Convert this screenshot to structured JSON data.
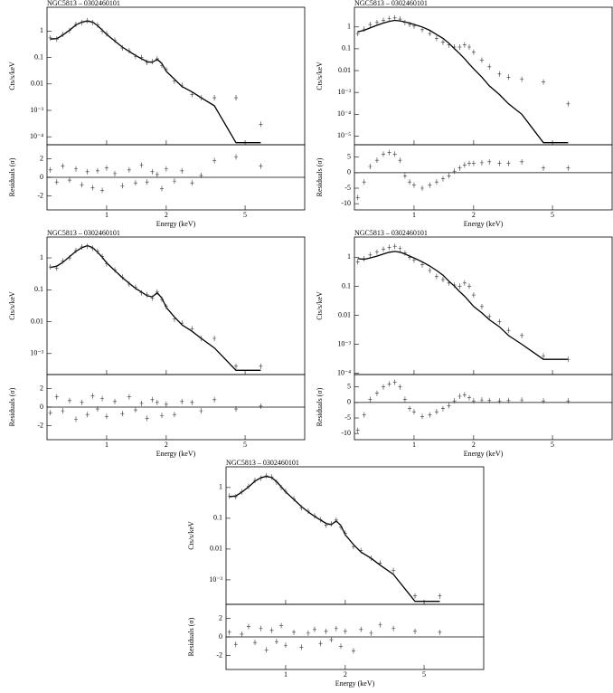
{
  "chart_data": [
    {
      "type": "spectrum",
      "title": "NGC5813 – 0302460101",
      "xlabel": "Energy (keV)",
      "ylabel": "Cts/s/keV",
      "residual_ylabel": "Residuals (σ)",
      "log_x": true,
      "log_y": true,
      "xlim": [
        0.5,
        10
      ],
      "xticks": [
        1,
        2,
        5
      ],
      "ylim": [
        5e-05,
        8
      ],
      "yticks": [
        1,
        0.1,
        0.01,
        {
          "value": 0.001,
          "label": "10⁻³"
        },
        {
          "value": 0.0001,
          "label": "10⁻⁴"
        }
      ],
      "residual_ylim": [
        -3.5,
        3.5
      ],
      "residual_yticks": [
        -2,
        0,
        2
      ],
      "x": [
        0.52,
        0.56,
        0.6,
        0.65,
        0.7,
        0.75,
        0.8,
        0.85,
        0.9,
        0.95,
        1.0,
        1.1,
        1.2,
        1.3,
        1.4,
        1.5,
        1.6,
        1.7,
        1.8,
        1.9,
        2.0,
        2.2,
        2.4,
        2.7,
        3.0,
        3.5,
        4.5,
        6.0
      ],
      "model": [
        0.5,
        0.52,
        0.7,
        1.1,
        1.7,
        2.2,
        2.4,
        2.2,
        1.6,
        1.1,
        0.75,
        0.42,
        0.25,
        0.17,
        0.12,
        0.09,
        0.07,
        0.065,
        0.085,
        0.06,
        0.03,
        0.015,
        0.008,
        0.005,
        0.003,
        0.0015,
        6e-05,
        6e-05
      ],
      "data": [
        0.55,
        0.5,
        0.75,
        1.05,
        1.8,
        2.1,
        2.5,
        2.1,
        1.7,
        1.0,
        0.8,
        0.45,
        0.23,
        0.18,
        0.11,
        0.1,
        0.065,
        0.07,
        0.09,
        0.05,
        0.035,
        0.013,
        0.009,
        0.004,
        0.003,
        0.003,
        0.003,
        0.0003
      ],
      "residuals": [
        0.8,
        -0.5,
        1.2,
        -0.3,
        0.9,
        -0.8,
        0.6,
        -1.1,
        0.7,
        -1.4,
        1.0,
        0.4,
        -0.9,
        0.8,
        -0.6,
        1.3,
        -0.5,
        0.6,
        0.3,
        -1.2,
        0.9,
        -0.4,
        0.7,
        -0.6,
        0.2,
        1.8,
        2.2,
        1.2
      ]
    },
    {
      "type": "spectrum",
      "title": "NGC5813 – 0302460101",
      "xlabel": "Energy (keV)",
      "ylabel": "Cts/s/keV",
      "residual_ylabel": "Residuals (σ)",
      "log_x": true,
      "log_y": true,
      "xlim": [
        0.5,
        10
      ],
      "xticks": [
        1,
        2,
        5
      ],
      "ylim": [
        4e-06,
        8
      ],
      "yticks": [
        1,
        0.1,
        0.01,
        {
          "value": 0.001,
          "label": "10⁻³"
        },
        {
          "value": 0.0001,
          "label": "10⁻⁴"
        },
        {
          "value": 1e-05,
          "label": "10⁻⁵"
        }
      ],
      "residual_ylim": [
        -12,
        9
      ],
      "residual_yticks": [
        -10,
        -5,
        0,
        5
      ],
      "x": [
        0.52,
        0.56,
        0.6,
        0.65,
        0.7,
        0.75,
        0.8,
        0.85,
        0.9,
        0.95,
        1.0,
        1.1,
        1.2,
        1.3,
        1.4,
        1.5,
        1.6,
        1.7,
        1.8,
        1.9,
        2.0,
        2.2,
        2.4,
        2.7,
        3.0,
        3.5,
        4.5,
        6.0
      ],
      "model": [
        0.6,
        0.7,
        0.9,
        1.2,
        1.5,
        1.8,
        2.0,
        1.9,
        1.7,
        1.5,
        1.3,
        1.0,
        0.7,
        0.45,
        0.3,
        0.18,
        0.1,
        0.06,
        0.035,
        0.02,
        0.012,
        0.005,
        0.002,
        0.0008,
        0.0003,
        0.0001,
        5e-06,
        5e-06
      ],
      "data": [
        0.5,
        0.8,
        1.3,
        1.6,
        2.0,
        2.4,
        2.6,
        2.3,
        1.6,
        1.3,
        1.1,
        0.75,
        0.5,
        0.3,
        0.2,
        0.15,
        0.12,
        0.12,
        0.15,
        0.12,
        0.07,
        0.03,
        0.015,
        0.007,
        0.005,
        0.004,
        0.003,
        0.0003
      ],
      "residuals": [
        -8,
        -3,
        2,
        4,
        6,
        6.5,
        6,
        4,
        -1,
        -3,
        -4,
        -5,
        -4,
        -3,
        -2,
        -1,
        0.5,
        1.5,
        2.5,
        3,
        3,
        3.2,
        3.5,
        3,
        3,
        3.5,
        1.5,
        1.5
      ]
    },
    {
      "type": "spectrum",
      "title": "NGC5813 – 0302460101",
      "xlabel": "Energy (keV)",
      "ylabel": "Cts/s/keV",
      "residual_ylabel": "Residuals (σ)",
      "log_x": true,
      "log_y": true,
      "xlim": [
        0.5,
        10
      ],
      "xticks": [
        1,
        2,
        5
      ],
      "ylim": [
        0.00022,
        4.5
      ],
      "yticks": [
        1,
        0.1,
        0.01,
        {
          "value": 0.001,
          "label": "10⁻³"
        }
      ],
      "residual_ylim": [
        -3.5,
        3.5
      ],
      "residual_yticks": [
        -2,
        0,
        2
      ],
      "x": [
        0.52,
        0.56,
        0.6,
        0.65,
        0.7,
        0.75,
        0.8,
        0.85,
        0.9,
        0.95,
        1.0,
        1.1,
        1.2,
        1.3,
        1.4,
        1.5,
        1.6,
        1.7,
        1.8,
        1.9,
        2.0,
        2.2,
        2.4,
        2.7,
        3.0,
        3.5,
        4.5,
        6.0
      ],
      "model": [
        0.5,
        0.55,
        0.72,
        1.1,
        1.6,
        2.1,
        2.4,
        2.1,
        1.5,
        1.05,
        0.7,
        0.4,
        0.24,
        0.16,
        0.11,
        0.085,
        0.065,
        0.06,
        0.08,
        0.055,
        0.028,
        0.014,
        0.008,
        0.005,
        0.003,
        0.0015,
        0.0003,
        0.0003
      ],
      "data": [
        0.52,
        0.48,
        0.8,
        1.0,
        1.7,
        2.2,
        2.3,
        2.0,
        1.6,
        1.1,
        0.65,
        0.42,
        0.25,
        0.15,
        0.12,
        0.08,
        0.07,
        0.055,
        0.085,
        0.05,
        0.03,
        0.012,
        0.009,
        0.006,
        0.003,
        0.003,
        0.0004,
        0.0004
      ],
      "residuals": [
        -0.6,
        1.1,
        -0.4,
        0.7,
        -1.3,
        0.5,
        -0.8,
        1.2,
        -0.2,
        0.9,
        -1.0,
        0.6,
        -0.7,
        1.1,
        -0.3,
        0.4,
        -1.2,
        0.8,
        0.5,
        -0.9,
        0.3,
        -0.8,
        0.6,
        0.5,
        -0.4,
        0.8,
        -0.2,
        0.1
      ]
    },
    {
      "type": "spectrum",
      "title": "NGC5813 – 0302460101",
      "xlabel": "Energy (keV)",
      "ylabel": "Cts/s/keV",
      "residual_ylabel": "Residuals (σ)",
      "log_x": true,
      "log_y": true,
      "xlim": [
        0.5,
        10
      ],
      "xticks": [
        1,
        2,
        5
      ],
      "ylim": [
        9e-05,
        5
      ],
      "yticks": [
        1,
        0.1,
        0.01,
        {
          "value": 0.001,
          "label": "10⁻³"
        },
        {
          "value": 0.0001,
          "label": "10⁻⁴"
        }
      ],
      "residual_ylim": [
        -12,
        9
      ],
      "residual_yticks": [
        -10,
        -5,
        0,
        5
      ],
      "x": [
        0.52,
        0.56,
        0.6,
        0.65,
        0.7,
        0.75,
        0.8,
        0.85,
        0.9,
        0.95,
        1.0,
        1.1,
        1.2,
        1.3,
        1.4,
        1.5,
        1.6,
        1.7,
        1.8,
        1.9,
        2.0,
        2.2,
        2.4,
        2.7,
        3.0,
        3.5,
        4.5,
        6.0
      ],
      "model": [
        0.9,
        0.85,
        0.95,
        1.1,
        1.3,
        1.5,
        1.6,
        1.5,
        1.3,
        1.1,
        0.95,
        0.7,
        0.5,
        0.35,
        0.24,
        0.15,
        0.1,
        0.065,
        0.045,
        0.03,
        0.02,
        0.012,
        0.007,
        0.004,
        0.002,
        0.001,
        0.0003,
        0.0003
      ],
      "data": [
        0.7,
        0.9,
        1.2,
        1.5,
        1.9,
        2.2,
        2.4,
        2.0,
        1.4,
        1.0,
        0.8,
        0.55,
        0.35,
        0.22,
        0.17,
        0.13,
        0.11,
        0.1,
        0.13,
        0.1,
        0.05,
        0.02,
        0.009,
        0.006,
        0.003,
        0.002,
        0.0004,
        0.0003
      ],
      "residuals": [
        -9,
        -4,
        1,
        3,
        5,
        6,
        6.5,
        5,
        1,
        -2,
        -3,
        -4.5,
        -4,
        -3,
        -2,
        -1,
        0.5,
        2,
        2.5,
        1.5,
        0.5,
        0.8,
        0.6,
        0.5,
        0.6,
        0.8,
        0.5,
        0.5
      ]
    },
    {
      "type": "spectrum",
      "title": "NGC5813 – 0302460101",
      "xlabel": "Energy (keV)",
      "ylabel": "Cts/s/keV",
      "residual_ylabel": "Residuals (σ)",
      "log_x": true,
      "log_y": true,
      "xlim": [
        0.5,
        10
      ],
      "xticks": [
        1,
        2,
        5
      ],
      "ylim": [
        0.00016,
        4.7
      ],
      "yticks": [
        1,
        0.1,
        0.01,
        {
          "value": 0.001,
          "label": "10⁻³"
        }
      ],
      "residual_ylim": [
        -3.5,
        3.5
      ],
      "residual_yticks": [
        -2,
        0,
        2
      ],
      "x": [
        0.52,
        0.56,
        0.6,
        0.65,
        0.7,
        0.75,
        0.8,
        0.85,
        0.9,
        0.95,
        1.0,
        1.1,
        1.2,
        1.3,
        1.4,
        1.5,
        1.6,
        1.7,
        1.8,
        1.9,
        2.0,
        2.2,
        2.4,
        2.7,
        3.0,
        3.5,
        4.5,
        6.0
      ],
      "model": [
        0.5,
        0.53,
        0.7,
        1.05,
        1.6,
        2.1,
        2.3,
        2.1,
        1.55,
        1.05,
        0.72,
        0.41,
        0.24,
        0.16,
        0.115,
        0.088,
        0.068,
        0.062,
        0.082,
        0.058,
        0.029,
        0.014,
        0.008,
        0.005,
        0.003,
        0.0015,
        0.0002,
        0.0002
      ],
      "data": [
        0.53,
        0.5,
        0.72,
        1.1,
        1.7,
        2.0,
        2.4,
        2.2,
        1.5,
        1.0,
        0.75,
        0.43,
        0.22,
        0.17,
        0.12,
        0.09,
        0.06,
        0.066,
        0.088,
        0.052,
        0.033,
        0.012,
        0.009,
        0.005,
        0.0035,
        0.002,
        0.0003,
        0.0003
      ],
      "residuals": [
        0.5,
        -0.8,
        0.3,
        1.1,
        -0.6,
        0.9,
        -1.4,
        0.7,
        -0.5,
        1.2,
        -0.9,
        0.5,
        -1.1,
        0.4,
        0.8,
        -0.7,
        0.6,
        -0.3,
        0.9,
        -1.0,
        0.6,
        -1.5,
        0.8,
        0.4,
        1.3,
        0.9,
        0.6,
        0.5
      ]
    }
  ]
}
